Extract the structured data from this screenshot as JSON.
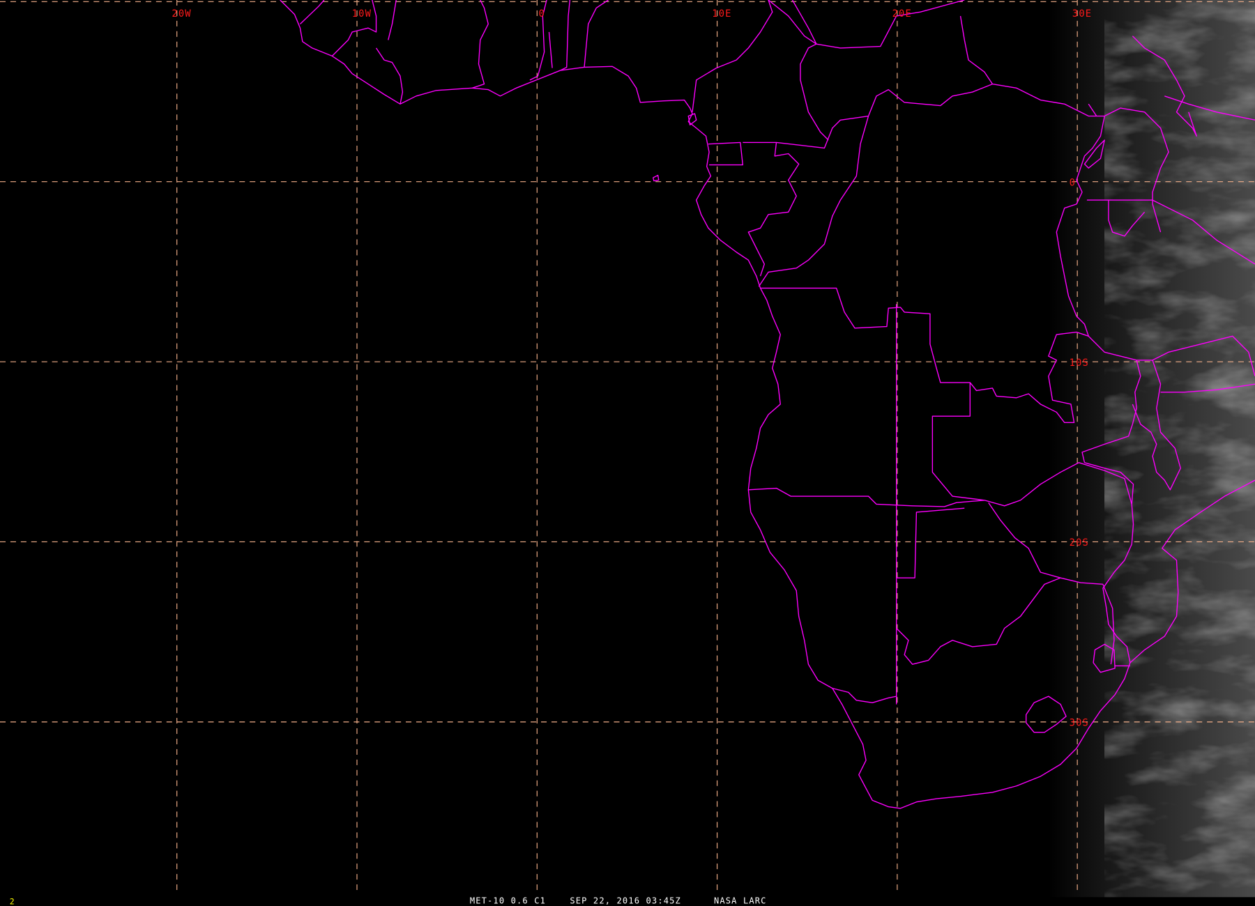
{
  "image": {
    "satellite_caption": "MET-10 0.6 C1",
    "datetime_caption": "SEP 22, 2016 03:45Z",
    "source_caption": "NASA LARC",
    "frame_number": "2"
  },
  "grid": {
    "longitudes": [
      {
        "value": -20,
        "label": "20W"
      },
      {
        "value": -10,
        "label": "10W"
      },
      {
        "value": 0,
        "label": "0"
      },
      {
        "value": 10,
        "label": "10E"
      },
      {
        "value": 20,
        "label": "20E"
      },
      {
        "value": 30,
        "label": "30E"
      }
    ],
    "latitudes": [
      {
        "value": 10,
        "label": ""
      },
      {
        "value": 0,
        "label": "0"
      },
      {
        "value": -10,
        "label": "10S"
      },
      {
        "value": -20,
        "label": "20S"
      },
      {
        "value": -30,
        "label": "30S"
      }
    ]
  },
  "colors": {
    "background": "#000000",
    "gridlines": "#f4b08a",
    "grid_labels": "#ff1a1a",
    "boundaries": "#ff00ff",
    "caption": "#ffffff",
    "frame_number": "#ffff00"
  }
}
